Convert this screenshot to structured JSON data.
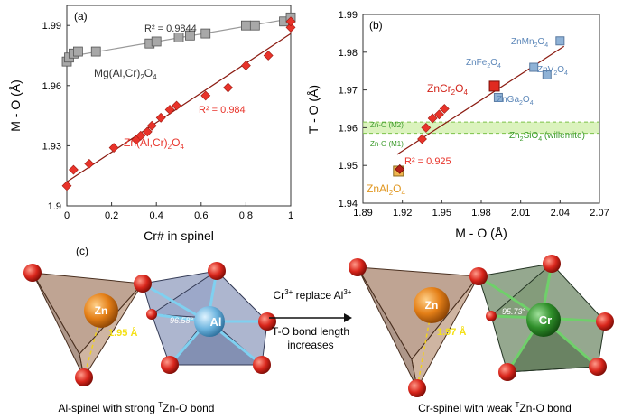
{
  "colors": {
    "grey": "#9a9a9a",
    "red": "#e8332a",
    "darkred": "#8b1a10",
    "blue": "#8fb2d6",
    "orange": "#f0b650",
    "green_band": "#c8ec9a",
    "green_text": "#3a9a2a"
  },
  "chart_data": [
    {
      "type": "scatter",
      "panel": "(a)",
      "xlabel": "Cr# in spinel",
      "ylabel": "M - O (Å)",
      "xlim": [
        0,
        1
      ],
      "ylim": [
        1.9,
        2.0
      ],
      "xticks": [
        "0",
        "0.2",
        "0.4",
        "0.6",
        "0.8",
        "1"
      ],
      "yticks": [
        "1.9",
        "1.93",
        "1.96",
        "1.99"
      ],
      "series": [
        {
          "name": "Mg(Al,Cr)2O4",
          "marker": "square",
          "r2": "R² = 0.9844",
          "x": [
            0.0,
            0.01,
            0.03,
            0.05,
            0.13,
            0.37,
            0.4,
            0.5,
            0.55,
            0.62,
            0.8,
            0.84,
            0.97,
            1.0
          ],
          "y": [
            1.972,
            1.974,
            1.976,
            1.977,
            1.977,
            1.981,
            1.982,
            1.984,
            1.985,
            1.986,
            1.99,
            1.99,
            1.992,
            1.994
          ]
        },
        {
          "name": "Zn(Al,Cr)2O4",
          "marker": "diamond",
          "r2": "R² = 0.984",
          "x": [
            0.0,
            0.03,
            0.1,
            0.21,
            0.31,
            0.33,
            0.36,
            0.38,
            0.42,
            0.46,
            0.49,
            0.62,
            0.72,
            0.8,
            0.9,
            1.0,
            1.0
          ],
          "y": [
            1.91,
            1.918,
            1.921,
            1.929,
            1.933,
            1.935,
            1.937,
            1.94,
            1.944,
            1.948,
            1.95,
            1.955,
            1.959,
            1.97,
            1.975,
            1.989,
            1.992
          ]
        }
      ]
    },
    {
      "type": "scatter",
      "panel": "(b)",
      "xlabel": "M - O (Å)",
      "ylabel": "T - O (Å)",
      "xlim": [
        1.89,
        2.07
      ],
      "ylim": [
        1.94,
        1.99
      ],
      "xticks": [
        "1.89",
        "1.92",
        "1.95",
        "1.98",
        "2.01",
        "2.04",
        "2.07"
      ],
      "yticks": [
        "1.94",
        "1.95",
        "1.96",
        "1.97",
        "1.98",
        "1.99"
      ],
      "r2": "R² = 0.925",
      "band": {
        "ymin": 1.9585,
        "ymax": 1.9615,
        "label_top": "Zn-O (M2)",
        "label_bottom": "Zn-O (M1)",
        "label_right": "Zn2SiO4 (willemite)"
      },
      "points": [
        {
          "x": 1.917,
          "y": 1.9485,
          "label": "ZnAl2O4",
          "color": "orange"
        },
        {
          "x": 1.918,
          "y": 1.949,
          "label": "",
          "color": "darkred"
        },
        {
          "x": 1.935,
          "y": 1.957,
          "label": "",
          "color": "red"
        },
        {
          "x": 1.938,
          "y": 1.96,
          "label": "",
          "color": "red"
        },
        {
          "x": 1.943,
          "y": 1.9625,
          "label": "",
          "color": "red"
        },
        {
          "x": 1.948,
          "y": 1.9635,
          "label": "",
          "color": "red"
        },
        {
          "x": 1.952,
          "y": 1.965,
          "label": "",
          "color": "red"
        },
        {
          "x": 1.99,
          "y": 1.971,
          "label": "ZnCr2O4",
          "color": "red"
        },
        {
          "x": 1.993,
          "y": 1.968,
          "label": "ZnGa2O4",
          "color": "blue"
        },
        {
          "x": 2.02,
          "y": 1.976,
          "label": "ZnFe2O4",
          "color": "blue"
        },
        {
          "x": 2.03,
          "y": 1.974,
          "label": "ZnV2O4",
          "color": "blue"
        },
        {
          "x": 2.04,
          "y": 1.983,
          "label": "ZnMn2O4",
          "color": "blue"
        }
      ]
    }
  ],
  "panel_c": {
    "label": "(c)",
    "left": {
      "metal_label": "Zn",
      "bond_length": "1.95 Å",
      "angle": "96.58°",
      "oct_label": "Al",
      "caption_pre": "Al-spinel with strong ",
      "caption_sup": "T",
      "caption_post": "Zn-O bond"
    },
    "right": {
      "metal_label": "Zn",
      "bond_length": "1.97 Å",
      "angle": "95.73°",
      "oct_label": "Cr",
      "caption_pre": "Cr-spinel with weak ",
      "caption_sup": "T",
      "caption_post": "Zn-O bond"
    },
    "arrow_line1_a": "Cr",
    "arrow_line1_a_sup": "3+",
    "arrow_line1_b": " replace Al",
    "arrow_line1_b_sup": "3+",
    "arrow_line2": "T-O bond length",
    "arrow_line3": "increases"
  },
  "labels_a": {
    "r2_mg": "R² = 0.9844",
    "r2_zn": "R² = 0.984",
    "mg_formula": "Mg(Al,Cr)",
    "zn_formula": "Zn(Al,Cr)",
    "sub2": "2",
    "o": "O",
    "sub4": "4"
  }
}
